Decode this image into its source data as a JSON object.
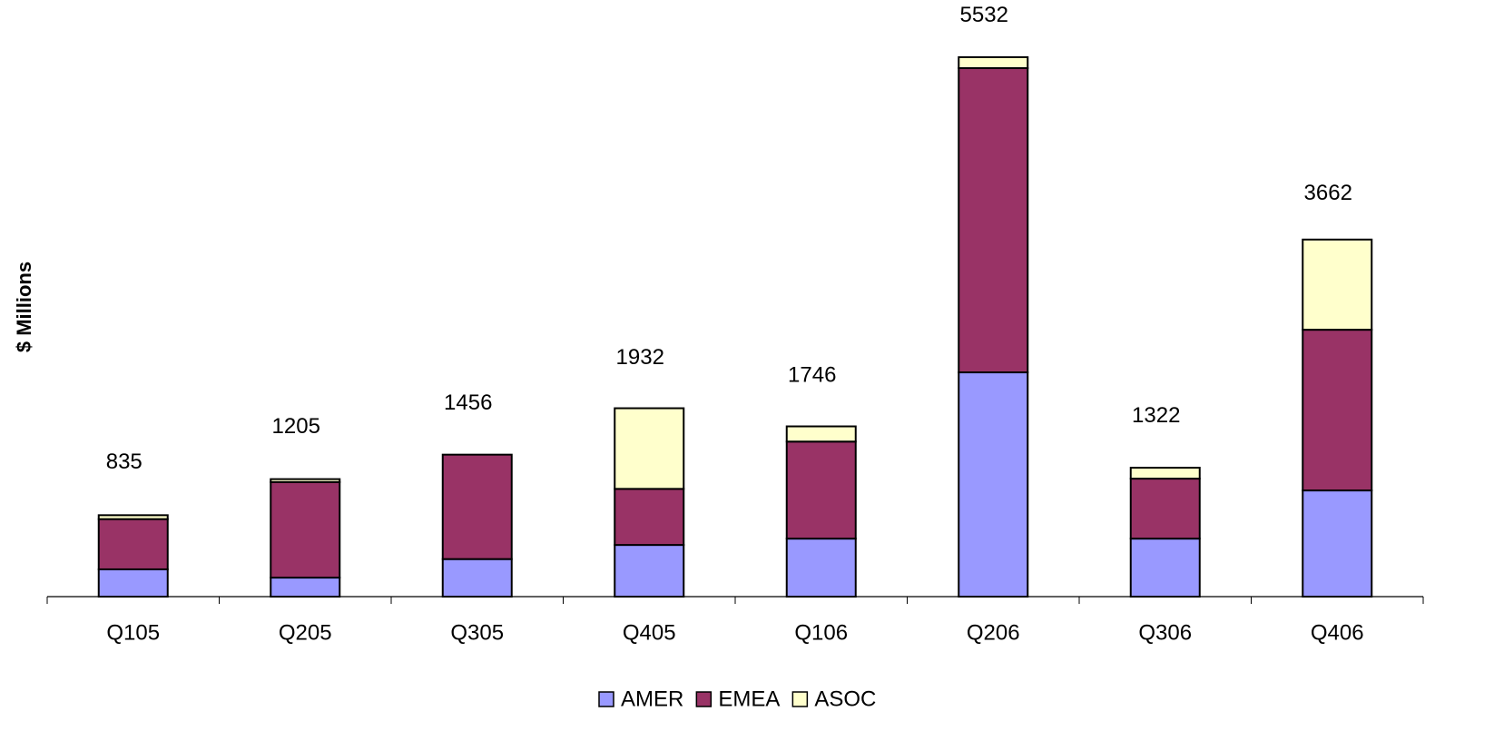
{
  "chart_data": {
    "type": "stacked-bar",
    "y_label": "$ Millions",
    "categories": [
      "Q105",
      "Q205",
      "Q305",
      "Q405",
      "Q106",
      "Q206",
      "Q306",
      "Q406"
    ],
    "series": [
      {
        "name": "AMER",
        "color": "#9999ff",
        "values": [
          280,
          195,
          385,
          530,
          595,
          2300,
          595,
          1089
        ]
      },
      {
        "name": "EMEA",
        "color": "#993366",
        "values": [
          515,
          980,
          1071,
          575,
          995,
          3120,
          615,
          1648
        ]
      },
      {
        "name": "ASOC",
        "color": "#ffffcc",
        "values": [
          40,
          30,
          0,
          827,
          156,
          112,
          112,
          925
        ]
      }
    ],
    "totals": [
      835,
      1205,
      1456,
      1932,
      1746,
      5532,
      1322,
      3662
    ],
    "ylim": [
      0,
      6100
    ]
  }
}
